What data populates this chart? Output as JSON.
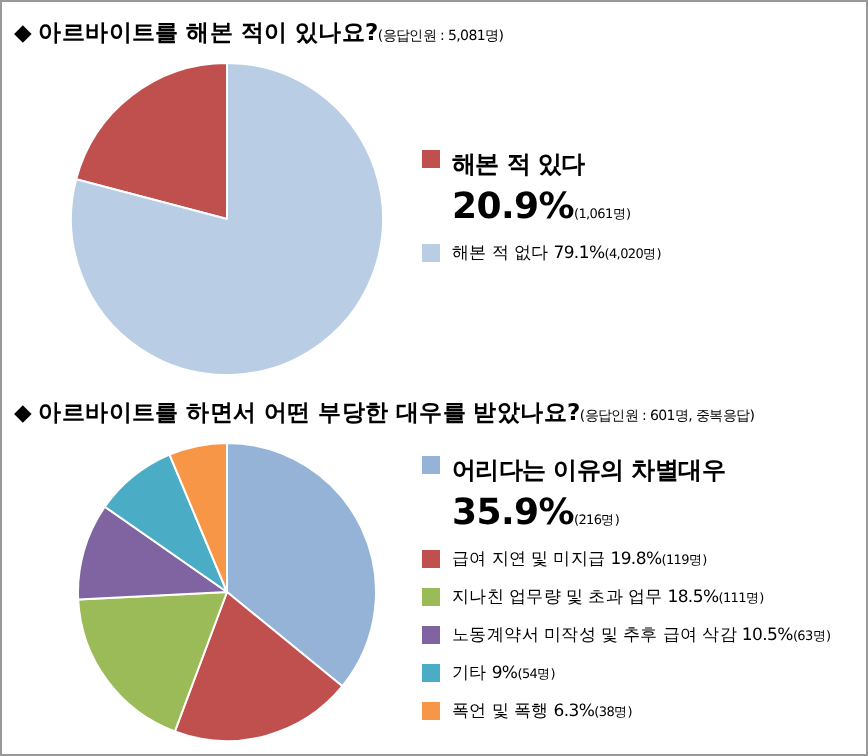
{
  "chart_data": [
    {
      "type": "pie",
      "title": "◆ 아르바이트를 해본 적이 있나요?",
      "subtitle": "(응답인원 : 5,081명)",
      "categories": [
        "해본 적 있다",
        "해본 적 없다"
      ],
      "values": [
        20.9,
        79.1
      ],
      "colors": [
        "#c0504d",
        "#b9cde5"
      ],
      "value_labels": [
        "20.9%(1,061명)",
        "79.1%(4,020명)"
      ],
      "legend": "right"
    },
    {
      "type": "pie",
      "title": "◆ 아르바이트를 하면서 어떤 부당한 대우를 받았나요?",
      "subtitle": "(응답인원 : 601명, 중복응답)",
      "categories": [
        "어리다는 이유의 차별대우",
        "급여 지연 및 미지급",
        "지나친 업무량 및 초과 업무",
        "노동계약서 미작성 및 추후 급여 삭감",
        "기타",
        "폭언 및 폭행"
      ],
      "values": [
        35.9,
        19.8,
        18.5,
        10.5,
        9,
        6.3
      ],
      "colors": [
        "#95b3d7",
        "#c0504d",
        "#9bbb59",
        "#8064a2",
        "#4bacc6",
        "#f79646"
      ],
      "value_labels": [
        "35.9%(216명)",
        "19.8%(119명)",
        "18.5%(111명)",
        "10.5%(63명)",
        "9%(54명)",
        "6.3%(38명)"
      ],
      "legend": "right"
    }
  ]
}
